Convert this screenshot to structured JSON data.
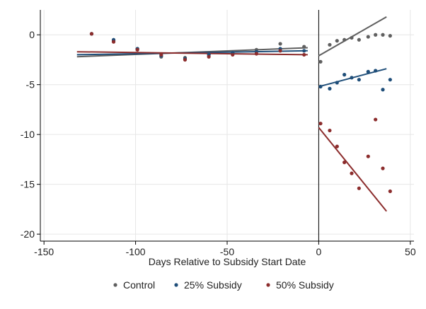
{
  "chart_data": {
    "type": "scatter",
    "xlabel": "Days Relative to Subsidy Start Date",
    "ylabel": "",
    "title": "",
    "xlim": [
      -152,
      52
    ],
    "ylim": [
      -20.7,
      2.5
    ],
    "xticks": [
      -150,
      -100,
      -50,
      0,
      50
    ],
    "yticks": [
      0,
      -5,
      -10,
      -15,
      -20
    ],
    "xtick_labels": [
      "-150",
      "-100",
      "-50",
      "0",
      "50"
    ],
    "ytick_labels": [
      "0",
      "-5",
      "-10",
      "-15",
      "-20"
    ],
    "grid": true,
    "vline_x": 0,
    "legend_position": "bottom",
    "series": [
      {
        "name": "Control",
        "color": "#5f5f5f",
        "points": [
          [
            -124,
            0.1
          ],
          [
            -112,
            -0.6
          ],
          [
            -99,
            -1.4
          ],
          [
            -86,
            -2.2
          ],
          [
            -73,
            -2.3
          ],
          [
            -60,
            -2.0
          ],
          [
            -47,
            -1.9
          ],
          [
            -34,
            -1.5
          ],
          [
            -21,
            -0.9
          ],
          [
            -8,
            -1.2
          ],
          [
            1,
            -2.7
          ],
          [
            6,
            -1.0
          ],
          [
            10,
            -0.6
          ],
          [
            14,
            -0.5
          ],
          [
            18,
            -0.3
          ],
          [
            22,
            -0.5
          ],
          [
            27,
            -0.2
          ],
          [
            31,
            0.0
          ],
          [
            35,
            0.0
          ],
          [
            39,
            -0.1
          ]
        ],
        "pre_fit": [
          [
            -132,
            -2.2
          ],
          [
            -6,
            -1.3
          ]
        ],
        "post_fit": [
          [
            0,
            -2.1
          ],
          [
            37,
            1.8
          ]
        ]
      },
      {
        "name": "25% Subsidy",
        "color": "#1f4e79",
        "points": [
          [
            -124,
            0.1
          ],
          [
            -112,
            -0.5
          ],
          [
            -99,
            -1.4
          ],
          [
            -86,
            -2.1
          ],
          [
            -73,
            -2.4
          ],
          [
            -60,
            -2.0
          ],
          [
            -47,
            -1.8
          ],
          [
            -34,
            -1.7
          ],
          [
            -21,
            -1.4
          ],
          [
            -8,
            -1.6
          ],
          [
            1,
            -5.2
          ],
          [
            6,
            -5.4
          ],
          [
            10,
            -4.8
          ],
          [
            14,
            -4.0
          ],
          [
            18,
            -4.3
          ],
          [
            22,
            -4.5
          ],
          [
            27,
            -3.7
          ],
          [
            31,
            -3.6
          ],
          [
            35,
            -5.5
          ],
          [
            39,
            -4.5
          ]
        ],
        "pre_fit": [
          [
            -132,
            -2.0
          ],
          [
            -6,
            -1.6
          ]
        ],
        "post_fit": [
          [
            0,
            -5.2
          ],
          [
            37,
            -3.4
          ]
        ]
      },
      {
        "name": "50% Subsidy",
        "color": "#8c2d2d",
        "points": [
          [
            -124,
            0.1
          ],
          [
            -112,
            -0.7
          ],
          [
            -99,
            -1.5
          ],
          [
            -86,
            -2.0
          ],
          [
            -73,
            -2.5
          ],
          [
            -60,
            -2.2
          ],
          [
            -47,
            -2.0
          ],
          [
            -34,
            -1.9
          ],
          [
            -21,
            -1.6
          ],
          [
            -8,
            -2.0
          ],
          [
            1,
            -8.9
          ],
          [
            6,
            -9.6
          ],
          [
            10,
            -11.2
          ],
          [
            14,
            -12.8
          ],
          [
            18,
            -13.9
          ],
          [
            22,
            -15.4
          ],
          [
            27,
            -12.2
          ],
          [
            31,
            -8.5
          ],
          [
            35,
            -13.4
          ],
          [
            39,
            -15.7
          ]
        ],
        "pre_fit": [
          [
            -132,
            -1.7
          ],
          [
            -6,
            -2.0
          ]
        ],
        "post_fit": [
          [
            0,
            -9.3
          ],
          [
            37,
            -17.7
          ]
        ]
      }
    ]
  }
}
